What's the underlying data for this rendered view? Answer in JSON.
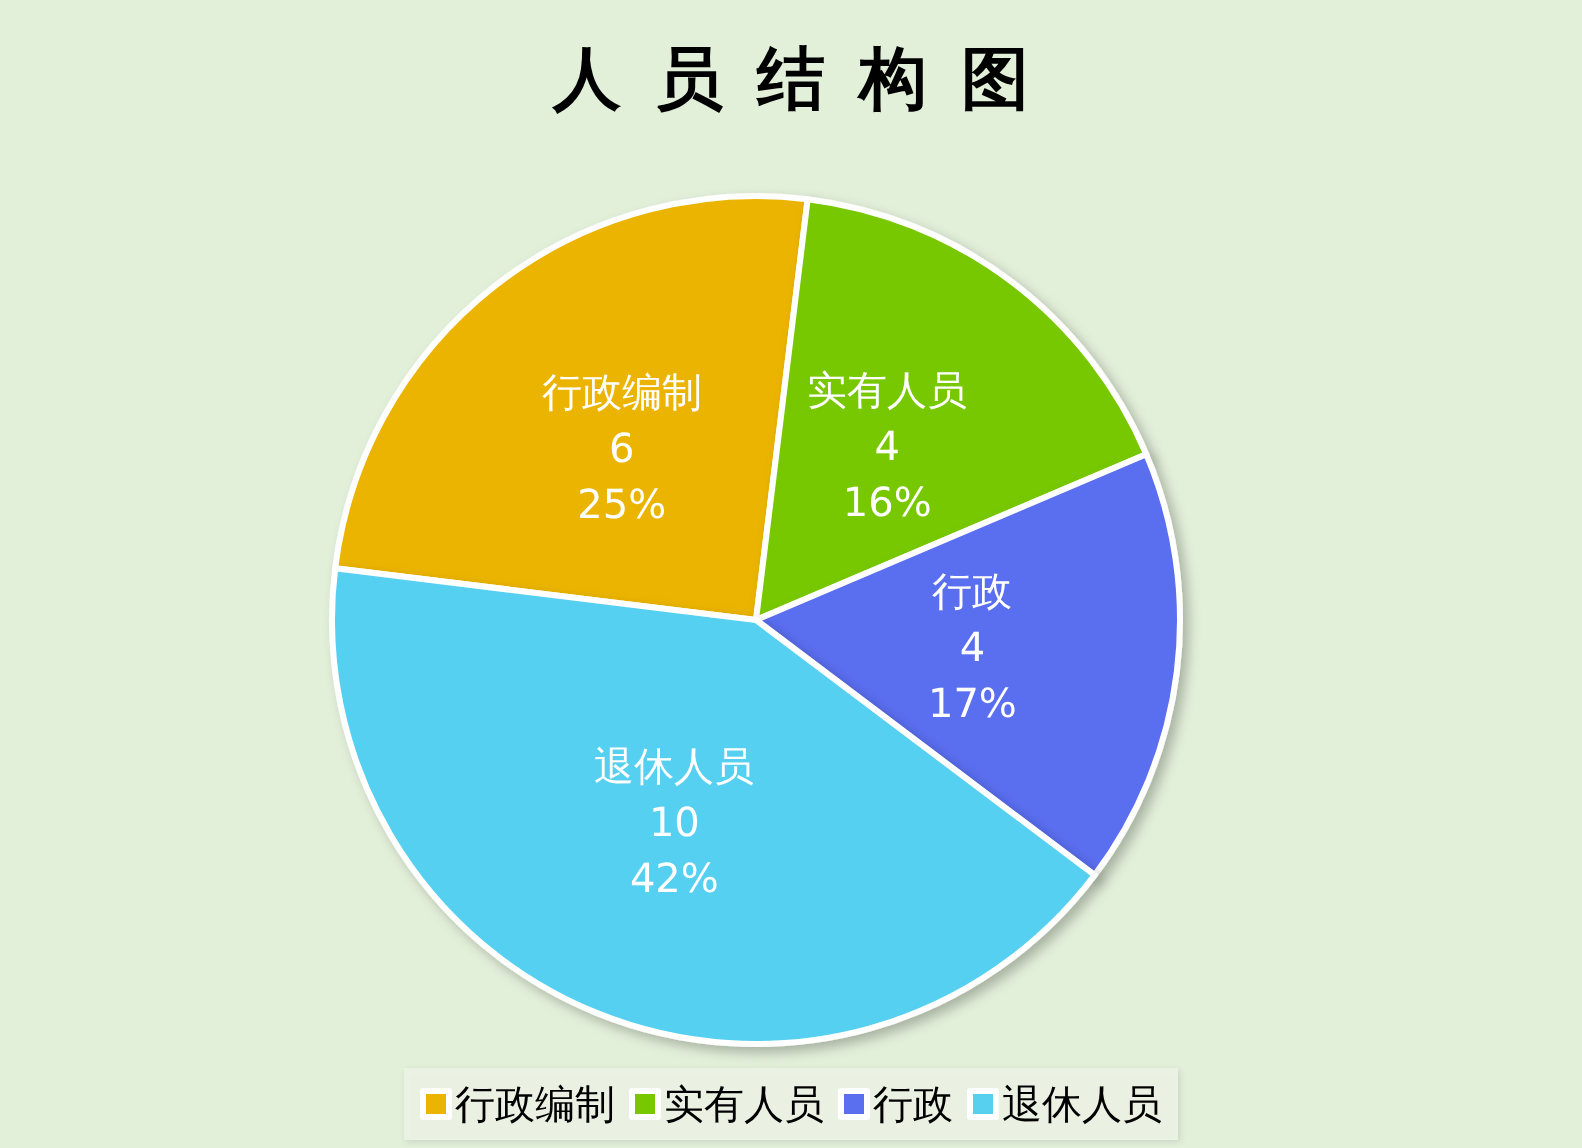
{
  "chart_data": {
    "type": "pie",
    "title": "人员结构图",
    "categories": [
      "行政编制",
      "实有人员",
      "行政",
      "退休人员"
    ],
    "values": [
      6,
      4,
      4,
      10
    ],
    "colors": [
      "#ebb400",
      "#77c800",
      "#5a6ef0",
      "#57d0f0"
    ],
    "value_labels": [
      "6\n25%",
      "4\n16%",
      "4\n17%",
      "10\n42%"
    ],
    "legend": "bottom"
  }
}
